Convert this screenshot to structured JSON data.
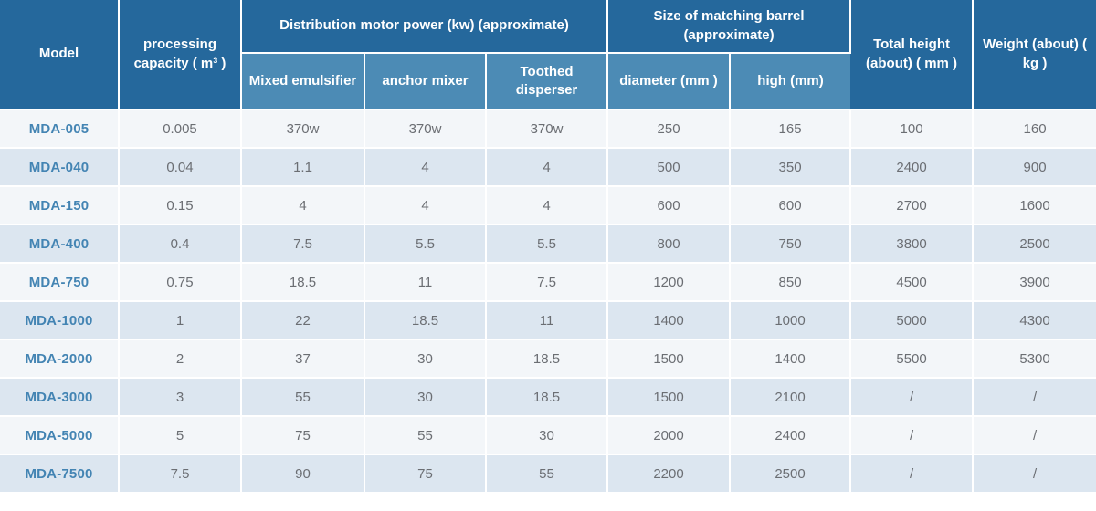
{
  "table": {
    "header": {
      "model": "Model",
      "capacity": "processing capacity ( m³ )",
      "motor_group": "Distribution motor power (kw) (approximate)",
      "mixed": "Mixed emulsifier",
      "anchor": "anchor mixer",
      "toothed": "Toothed disperser",
      "barrel_group": "Size of matching barrel (approximate)",
      "diameter": "diameter (mm )",
      "high": "high (mm)",
      "total_height": "Total height (about) ( mm )",
      "weight": "Weight (about) ( kg )"
    },
    "rows": [
      {
        "model": "MDA-005",
        "capacity": "0.005",
        "mixed": "370w",
        "anchor": "370w",
        "toothed": "370w",
        "diameter": "250",
        "high": "165",
        "total_height": "100",
        "weight": "160"
      },
      {
        "model": "MDA-040",
        "capacity": "0.04",
        "mixed": "1.1",
        "anchor": "4",
        "toothed": "4",
        "diameter": "500",
        "high": "350",
        "total_height": "2400",
        "weight": "900"
      },
      {
        "model": "MDA-150",
        "capacity": "0.15",
        "mixed": "4",
        "anchor": "4",
        "toothed": "4",
        "diameter": "600",
        "high": "600",
        "total_height": "2700",
        "weight": "1600"
      },
      {
        "model": "MDA-400",
        "capacity": "0.4",
        "mixed": "7.5",
        "anchor": "5.5",
        "toothed": "5.5",
        "diameter": "800",
        "high": "750",
        "total_height": "3800",
        "weight": "2500"
      },
      {
        "model": "MDA-750",
        "capacity": "0.75",
        "mixed": "18.5",
        "anchor": "11",
        "toothed": "7.5",
        "diameter": "1200",
        "high": "850",
        "total_height": "4500",
        "weight": "3900"
      },
      {
        "model": "MDA-1000",
        "capacity": "1",
        "mixed": "22",
        "anchor": "18.5",
        "toothed": "11",
        "diameter": "1400",
        "high": "1000",
        "total_height": "5000",
        "weight": "4300"
      },
      {
        "model": "MDA-2000",
        "capacity": "2",
        "mixed": "37",
        "anchor": "30",
        "toothed": "18.5",
        "diameter": "1500",
        "high": "1400",
        "total_height": "5500",
        "weight": "5300"
      },
      {
        "model": "MDA-3000",
        "capacity": "3",
        "mixed": "55",
        "anchor": "30",
        "toothed": "18.5",
        "diameter": "1500",
        "high": "2100",
        "total_height": "/",
        "weight": "/"
      },
      {
        "model": "MDA-5000",
        "capacity": "5",
        "mixed": "75",
        "anchor": "55",
        "toothed": "30",
        "diameter": "2000",
        "high": "2400",
        "total_height": "/",
        "weight": "/"
      },
      {
        "model": "MDA-7500",
        "capacity": "7.5",
        "mixed": "90",
        "anchor": "75",
        "toothed": "55",
        "diameter": "2200",
        "high": "2500",
        "total_height": "/",
        "weight": "/"
      }
    ]
  }
}
